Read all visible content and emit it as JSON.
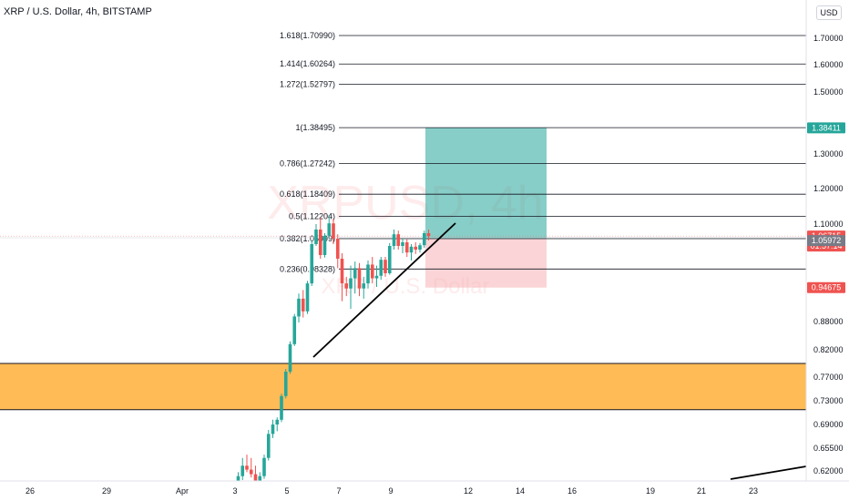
{
  "title": "XRP / U.S. Dollar, 4h, BITSTAMP",
  "currency_button": "USD",
  "watermark": {
    "symbol": "XRPUSD, 4h",
    "name": "XRP / U.S. Dollar"
  },
  "colors": {
    "up": "#26a69a",
    "down": "#ef5350",
    "zone": "#ffb74d",
    "profit": "#26a69a",
    "loss": "#f7b7bb"
  },
  "chart_data": {
    "type": "candlestick",
    "title": "XRP / U.S. Dollar, 4h, BITSTAMP",
    "y_axis_ticks": [
      "1.70000",
      "1.60000",
      "1.50000",
      "1.30000",
      "1.20000",
      "1.10000",
      "0.88000",
      "0.82000",
      "0.77000",
      "0.73000",
      "0.69000",
      "0.65500",
      "0.62000"
    ],
    "x_axis_ticks": [
      "26",
      "29",
      "Apr",
      "3",
      "5",
      "7",
      "9",
      "12",
      "14",
      "16",
      "19",
      "21",
      "23"
    ],
    "fib_levels": [
      {
        "label": "1.618(1.70990)",
        "value": 1.7099
      },
      {
        "label": "1.414(1.60264)",
        "value": 1.60264
      },
      {
        "label": "1.272(1.52797)",
        "value": 1.52797
      },
      {
        "label": "1(1.38495)",
        "value": 1.38495
      },
      {
        "label": "0.786(1.27242)",
        "value": 1.27242
      },
      {
        "label": "0.618(1.18409)",
        "value": 1.18409
      },
      {
        "label": "0.5(1.12204)",
        "value": 1.12204
      },
      {
        "label": "0.382(1.05999)",
        "value": 1.05999
      },
      {
        "label": "0.236(0.98328)",
        "value": 0.98328
      }
    ],
    "price_tags": [
      {
        "label": "1.38411",
        "value": 1.38411,
        "color": "#26a69a"
      },
      {
        "label": "1.06715",
        "value": 1.06715,
        "color": "#ef5350"
      },
      {
        "label": "01:57:14",
        "color": "#ef5350"
      },
      {
        "label": "1.05972",
        "value": 1.05972,
        "color": "#787b86"
      },
      {
        "label": "0.94675",
        "value": 0.94675,
        "color": "#ef5350"
      }
    ],
    "position": {
      "type": "long",
      "entry": 1.05972,
      "target": 1.38411,
      "stop": 0.94675
    },
    "zone": {
      "low": 0.715,
      "high": 0.795
    },
    "candles": [
      {
        "o": 0.585,
        "h": 0.597,
        "l": 0.578,
        "c": 0.592
      },
      {
        "o": 0.592,
        "h": 0.604,
        "l": 0.585,
        "c": 0.588
      },
      {
        "o": 0.588,
        "h": 0.618,
        "l": 0.586,
        "c": 0.612
      },
      {
        "o": 0.612,
        "h": 0.64,
        "l": 0.606,
        "c": 0.628
      },
      {
        "o": 0.628,
        "h": 0.645,
        "l": 0.618,
        "c": 0.622
      },
      {
        "o": 0.622,
        "h": 0.64,
        "l": 0.61,
        "c": 0.615
      },
      {
        "o": 0.615,
        "h": 0.628,
        "l": 0.596,
        "c": 0.6
      },
      {
        "o": 0.6,
        "h": 0.618,
        "l": 0.592,
        "c": 0.612
      },
      {
        "o": 0.612,
        "h": 0.645,
        "l": 0.608,
        "c": 0.64
      },
      {
        "o": 0.64,
        "h": 0.682,
        "l": 0.636,
        "c": 0.676
      },
      {
        "o": 0.676,
        "h": 0.698,
        "l": 0.67,
        "c": 0.69
      },
      {
        "o": 0.69,
        "h": 0.702,
        "l": 0.68,
        "c": 0.698
      },
      {
        "o": 0.698,
        "h": 0.742,
        "l": 0.694,
        "c": 0.738
      },
      {
        "o": 0.738,
        "h": 0.785,
        "l": 0.734,
        "c": 0.78
      },
      {
        "o": 0.78,
        "h": 0.838,
        "l": 0.776,
        "c": 0.832
      },
      {
        "o": 0.832,
        "h": 0.895,
        "l": 0.828,
        "c": 0.89
      },
      {
        "o": 0.89,
        "h": 0.935,
        "l": 0.878,
        "c": 0.925
      },
      {
        "o": 0.925,
        "h": 0.942,
        "l": 0.888,
        "c": 0.9
      },
      {
        "o": 0.9,
        "h": 0.96,
        "l": 0.895,
        "c": 0.955
      },
      {
        "o": 0.955,
        "h": 1.055,
        "l": 0.95,
        "c": 1.045
      },
      {
        "o": 1.045,
        "h": 1.1,
        "l": 1.04,
        "c": 1.085
      },
      {
        "o": 1.085,
        "h": 1.118,
        "l": 1.005,
        "c": 1.015
      },
      {
        "o": 1.015,
        "h": 1.075,
        "l": 1.008,
        "c": 1.068
      },
      {
        "o": 1.068,
        "h": 1.125,
        "l": 1.062,
        "c": 1.102
      },
      {
        "o": 1.102,
        "h": 1.115,
        "l": 1.045,
        "c": 1.06
      },
      {
        "o": 1.06,
        "h": 1.072,
        "l": 0.985,
        "c": 1.005
      },
      {
        "o": 1.005,
        "h": 1.02,
        "l": 0.92,
        "c": 0.955
      },
      {
        "o": 0.955,
        "h": 0.968,
        "l": 0.93,
        "c": 0.945
      },
      {
        "o": 0.945,
        "h": 0.99,
        "l": 0.905,
        "c": 0.965
      },
      {
        "o": 0.965,
        "h": 0.998,
        "l": 0.935,
        "c": 0.985
      },
      {
        "o": 0.985,
        "h": 0.995,
        "l": 0.93,
        "c": 0.945
      },
      {
        "o": 0.945,
        "h": 0.968,
        "l": 0.925,
        "c": 0.955
      },
      {
        "o": 0.955,
        "h": 1.0,
        "l": 0.945,
        "c": 0.992
      },
      {
        "o": 0.992,
        "h": 1.01,
        "l": 0.955,
        "c": 0.965
      },
      {
        "o": 0.965,
        "h": 0.99,
        "l": 0.948,
        "c": 0.97
      },
      {
        "o": 0.97,
        "h": 1.01,
        "l": 0.962,
        "c": 1.002
      },
      {
        "o": 1.002,
        "h": 1.01,
        "l": 0.968,
        "c": 0.975
      },
      {
        "o": 0.975,
        "h": 1.048,
        "l": 0.972,
        "c": 1.04
      },
      {
        "o": 1.04,
        "h": 1.085,
        "l": 1.03,
        "c": 1.072
      },
      {
        "o": 1.072,
        "h": 1.082,
        "l": 1.03,
        "c": 1.04
      },
      {
        "o": 1.04,
        "h": 1.06,
        "l": 1.02,
        "c": 1.05
      },
      {
        "o": 1.05,
        "h": 1.058,
        "l": 1.01,
        "c": 1.022
      },
      {
        "o": 1.022,
        "h": 1.045,
        "l": 1.0,
        "c": 1.038
      },
      {
        "o": 1.038,
        "h": 1.05,
        "l": 1.018,
        "c": 1.03
      },
      {
        "o": 1.03,
        "h": 1.048,
        "l": 1.022,
        "c": 1.042
      },
      {
        "o": 1.042,
        "h": 1.082,
        "l": 1.035,
        "c": 1.075
      },
      {
        "o": 1.075,
        "h": 1.085,
        "l": 1.055,
        "c": 1.067
      }
    ]
  }
}
